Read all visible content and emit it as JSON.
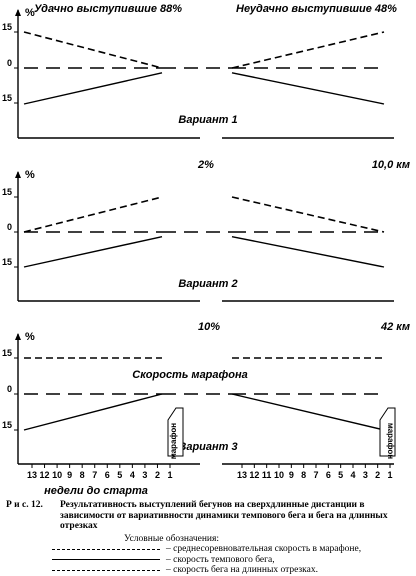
{
  "chart_data": [
    {
      "type": "line",
      "panel": "Вариант 1",
      "y_unit": "%",
      "yticks": [
        15,
        0,
        15
      ],
      "top_left_label": "Удачно выступившие 88%",
      "top_right_label": "Неудачно выступившие 48%",
      "variant_label": "Вариант 1",
      "series": [
        {
          "role": "long",
          "left": [
            15,
            0
          ],
          "right": [
            0,
            15
          ]
        },
        {
          "role": "marathon",
          "left": [
            0,
            0
          ],
          "right": [
            0,
            0
          ]
        },
        {
          "role": "tempo",
          "left": [
            -15,
            -2
          ],
          "right": [
            -2,
            -15
          ]
        }
      ]
    },
    {
      "type": "line",
      "panel": "Вариант 2",
      "y_unit": "%",
      "yticks": [
        15,
        0,
        15
      ],
      "top_center_label": "2%",
      "top_right_label": "10,0 км",
      "variant_label": "Вариант 2",
      "series": [
        {
          "role": "long",
          "left": [
            0,
            15
          ],
          "right": [
            15,
            0
          ]
        },
        {
          "role": "marathon",
          "left": [
            0,
            0
          ],
          "right": [
            0,
            0
          ]
        },
        {
          "role": "tempo",
          "left": [
            -15,
            -2
          ],
          "right": [
            -2,
            -15
          ]
        }
      ]
    },
    {
      "type": "line",
      "panel": "Вариант 3",
      "y_unit": "%",
      "yticks": [
        15,
        0,
        15
      ],
      "top_center_label": "10%",
      "top_right_label": "42 км",
      "marathon_label": "Скорость марафона",
      "variant_label": "Вариант 3",
      "box_label": "марафон",
      "box_label_right": "марафон",
      "series": [
        {
          "role": "long",
          "left": [
            15,
            15
          ],
          "right": [
            15,
            15
          ]
        },
        {
          "role": "marathon",
          "left": [
            0,
            0
          ],
          "right": [
            0,
            0
          ]
        },
        {
          "role": "tempo",
          "left": [
            -15,
            0
          ],
          "right": [
            0,
            -15
          ]
        }
      ],
      "x_left": [
        "13",
        "12",
        "10",
        "9",
        "8",
        "7",
        "6",
        "5",
        "4",
        "3",
        "2",
        "1"
      ],
      "x_right": [
        "13",
        "12",
        "11",
        "10",
        "9",
        "8",
        "7",
        "6",
        "5",
        "4",
        "3",
        "2",
        "1"
      ],
      "xlabel": "недели до старта"
    }
  ],
  "caption": {
    "label": "Р и с.   12.",
    "text": "Результативность выступлений бегунов на сверхдлинные дистанции в зависимости от вариативности динамики темпового бега и бега на длинных отрезках",
    "legend_title": "Условные обозначения:",
    "legend": [
      {
        "role": "marathon",
        "text": "– среднесоревновательная скорость в марафоне,"
      },
      {
        "role": "tempo",
        "text": "– скорость темпового бега,"
      },
      {
        "role": "long",
        "text": "– скорость бега на длинных отрезках."
      }
    ]
  }
}
